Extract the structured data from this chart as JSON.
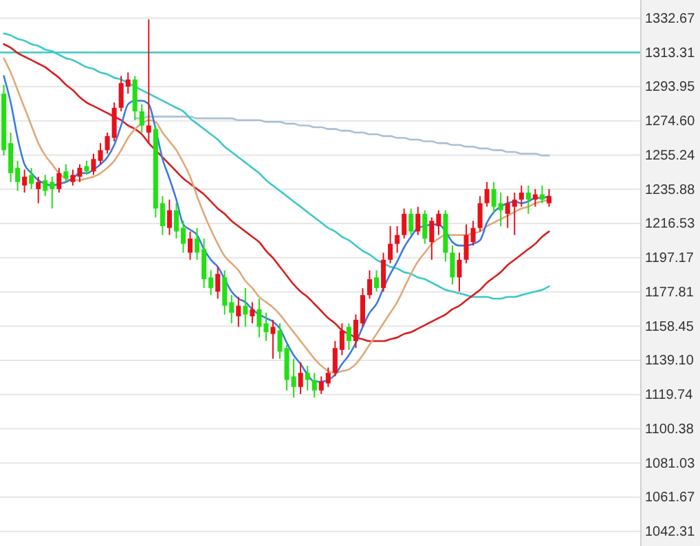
{
  "chart_data": {
    "type": "candlestick",
    "categories": [
      null,
      null,
      null,
      null,
      null,
      null,
      null,
      null,
      null,
      null,
      null,
      null,
      null,
      null,
      null,
      null,
      null,
      null,
      null,
      null,
      null,
      null,
      null,
      null,
      null,
      null,
      null,
      null,
      null,
      null,
      null,
      null,
      null,
      null,
      null,
      null,
      null,
      null,
      null,
      null,
      null,
      null,
      null,
      null,
      null,
      null,
      null,
      null,
      null,
      null,
      null,
      null,
      null,
      null,
      null,
      null,
      null,
      null,
      null,
      null,
      null,
      null,
      null,
      null,
      null,
      null,
      null,
      null,
      null,
      null,
      null,
      null,
      null,
      null,
      null,
      null,
      null,
      null,
      null,
      null
    ],
    "ohlc": [
      [
        1290,
        1295,
        1255,
        1258
      ],
      [
        1262,
        1268,
        1240,
        1245
      ],
      [
        1248,
        1252,
        1235,
        1240
      ],
      [
        1238,
        1247,
        1234,
        1243
      ],
      [
        1244,
        1248,
        1236,
        1239
      ],
      [
        1236,
        1243,
        1228,
        1240
      ],
      [
        1241,
        1244,
        1232,
        1235
      ],
      [
        1240,
        1243,
        1225,
        1236
      ],
      [
        1236,
        1248,
        1234,
        1245
      ],
      [
        1246,
        1250,
        1240,
        1242
      ],
      [
        1240,
        1247,
        1238,
        1244
      ],
      [
        1243,
        1250,
        1240,
        1248
      ],
      [
        1249,
        1252,
        1244,
        1246
      ],
      [
        1246,
        1256,
        1244,
        1253
      ],
      [
        1252,
        1262,
        1250,
        1258
      ],
      [
        1258,
        1268,
        1256,
        1266
      ],
      [
        1265,
        1285,
        1263,
        1282
      ],
      [
        1282,
        1300,
        1280,
        1296
      ],
      [
        1294,
        1302,
        1290,
        1298
      ],
      [
        1298,
        1300,
        1275,
        1280
      ],
      [
        1280,
        1284,
        1268,
        1272
      ],
      [
        1268,
        1332,
        1262,
        1272
      ],
      [
        1270,
        1272,
        1220,
        1225
      ],
      [
        1228,
        1232,
        1210,
        1215
      ],
      [
        1214,
        1230,
        1210,
        1224
      ],
      [
        1224,
        1228,
        1208,
        1212
      ],
      [
        1214,
        1218,
        1200,
        1205
      ],
      [
        1200,
        1212,
        1196,
        1208
      ],
      [
        1208,
        1214,
        1196,
        1200
      ],
      [
        1202,
        1208,
        1180,
        1185
      ],
      [
        1186,
        1190,
        1176,
        1180
      ],
      [
        1178,
        1192,
        1174,
        1188
      ],
      [
        1186,
        1190,
        1165,
        1170
      ],
      [
        1172,
        1176,
        1160,
        1166
      ],
      [
        1164,
        1175,
        1158,
        1170
      ],
      [
        1170,
        1180,
        1158,
        1165
      ],
      [
        1164,
        1172,
        1160,
        1168
      ],
      [
        1168,
        1174,
        1152,
        1158
      ],
      [
        1160,
        1166,
        1150,
        1155
      ],
      [
        1154,
        1162,
        1140,
        1158
      ],
      [
        1156,
        1160,
        1140,
        1144
      ],
      [
        1146,
        1148,
        1122,
        1128
      ],
      [
        1130,
        1140,
        1118,
        1124
      ],
      [
        1124,
        1138,
        1120,
        1132
      ],
      [
        1132,
        1136,
        1122,
        1128
      ],
      [
        1128,
        1132,
        1118,
        1122
      ],
      [
        1122,
        1130,
        1120,
        1127
      ],
      [
        1126,
        1135,
        1124,
        1132
      ],
      [
        1132,
        1150,
        1130,
        1146
      ],
      [
        1145,
        1160,
        1142,
        1156
      ],
      [
        1158,
        1160,
        1145,
        1150
      ],
      [
        1150,
        1165,
        1146,
        1162
      ],
      [
        1160,
        1180,
        1158,
        1176
      ],
      [
        1176,
        1190,
        1174,
        1185
      ],
      [
        1186,
        1190,
        1178,
        1180
      ],
      [
        1180,
        1200,
        1178,
        1196
      ],
      [
        1196,
        1215,
        1194,
        1205
      ],
      [
        1205,
        1215,
        1200,
        1210
      ],
      [
        1210,
        1225,
        1208,
        1222
      ],
      [
        1222,
        1225,
        1210,
        1212
      ],
      [
        1212,
        1226,
        1210,
        1222
      ],
      [
        1222,
        1224,
        1205,
        1208
      ],
      [
        1206,
        1220,
        1196,
        1218
      ],
      [
        1215,
        1224,
        1210,
        1222
      ],
      [
        1222,
        1224,
        1195,
        1200
      ],
      [
        1200,
        1204,
        1182,
        1186
      ],
      [
        1186,
        1200,
        1178,
        1196
      ],
      [
        1196,
        1216,
        1194,
        1210
      ],
      [
        1206,
        1218,
        1204,
        1214
      ],
      [
        1214,
        1232,
        1212,
        1228
      ],
      [
        1228,
        1240,
        1226,
        1236
      ],
      [
        1236,
        1240,
        1222,
        1226
      ],
      [
        1228,
        1234,
        1215,
        1224
      ],
      [
        1222,
        1232,
        1214,
        1228
      ],
      [
        1226,
        1234,
        1210,
        1230
      ],
      [
        1230,
        1238,
        1226,
        1234
      ],
      [
        1234,
        1238,
        1222,
        1230
      ],
      [
        1230,
        1236,
        1226,
        1233
      ],
      [
        1233,
        1238,
        1228,
        1230
      ],
      [
        1228,
        1236,
        1226,
        1232
      ]
    ],
    "colors": [
      "#22e012",
      "#22e012",
      "#22e012",
      "#e8101a",
      "#22e012",
      "#e8101a",
      "#22e012",
      "#22e012",
      "#e8101a",
      "#22e012",
      "#e8101a",
      "#e8101a",
      "#22e012",
      "#e8101a",
      "#e8101a",
      "#e8101a",
      "#e8101a",
      "#e8101a",
      "#e8101a",
      "#22e012",
      "#22e012",
      "#e8101a",
      "#22e012",
      "#22e012",
      "#e8101a",
      "#22e012",
      "#22e012",
      "#e8101a",
      "#22e012",
      "#22e012",
      "#22e012",
      "#e8101a",
      "#22e012",
      "#22e012",
      "#e8101a",
      "#22e012",
      "#e8101a",
      "#22e012",
      "#22e012",
      "#e8101a",
      "#22e012",
      "#22e012",
      "#22e012",
      "#e8101a",
      "#22e012",
      "#22e012",
      "#e8101a",
      "#e8101a",
      "#e8101a",
      "#e8101a",
      "#22e012",
      "#e8101a",
      "#e8101a",
      "#e8101a",
      "#22e012",
      "#e8101a",
      "#e8101a",
      "#e8101a",
      "#e8101a",
      "#22e012",
      "#e8101a",
      "#22e012",
      "#e8101a",
      "#e8101a",
      "#22e012",
      "#22e012",
      "#e8101a",
      "#e8101a",
      "#e8101a",
      "#e8101a",
      "#e8101a",
      "#22e012",
      "#22e012",
      "#e8101a",
      "#e8101a",
      "#e8101a",
      "#22e012",
      "#e8101a",
      "#22e012",
      "#e8101a"
    ],
    "series": [
      {
        "type": "line",
        "color": "#a8bfd6",
        "values": [
          null,
          null,
          null,
          null,
          null,
          null,
          null,
          null,
          null,
          null,
          null,
          null,
          null,
          null,
          null,
          null,
          null,
          null,
          null,
          1276,
          1276,
          1277,
          1277,
          1277,
          1277,
          1277,
          1277,
          1277,
          1276,
          1276,
          1276,
          1276,
          1276,
          1276,
          1275,
          1275,
          1275,
          1275,
          1274,
          1274,
          1274,
          1273,
          1273,
          1272,
          1272,
          1271,
          1271,
          1270,
          1270,
          1269,
          1269,
          1268,
          1268,
          1267,
          1267,
          1266,
          1266,
          1265,
          1265,
          1264,
          1264,
          1263,
          1263,
          1262,
          1262,
          1261,
          1261,
          1260,
          1260,
          1259,
          1259,
          1258,
          1258,
          1257,
          1257,
          1256,
          1256,
          1256,
          1255,
          1255
        ]
      },
      {
        "type": "line",
        "color": "#3cc8c8",
        "values": [
          1324,
          1323,
          1321,
          1320,
          1318,
          1317,
          1315,
          1314,
          1312,
          1310,
          1309,
          1307,
          1305,
          1304,
          1302,
          1301,
          1299,
          1298,
          1296,
          1294,
          1292,
          1290,
          1288,
          1286,
          1284,
          1282,
          1280,
          1276,
          1273,
          1270,
          1267,
          1264,
          1260,
          1257,
          1254,
          1251,
          1248,
          1245,
          1241,
          1238,
          1235,
          1232,
          1229,
          1226,
          1223,
          1220,
          1217,
          1214,
          1212,
          1209,
          1207,
          1204,
          1201,
          1199,
          1196,
          1194,
          1192,
          1191,
          1189,
          1188,
          1186,
          1185,
          1183,
          1181,
          1179,
          1178,
          1177,
          1176,
          1175,
          1175,
          1175,
          1174,
          1174,
          1175,
          1175,
          1176,
          1177,
          1178,
          1179,
          1181
        ]
      },
      {
        "type": "line",
        "color": "#d81e1e",
        "values": [
          1318,
          1316,
          1313,
          1311,
          1309,
          1307,
          1305,
          1302,
          1299,
          1295,
          1292,
          1288,
          1285,
          1283,
          1281,
          1279,
          1277,
          1275,
          1272,
          1270,
          1267,
          1262,
          1258,
          1254,
          1250,
          1246,
          1242,
          1239,
          1236,
          1233,
          1229,
          1225,
          1222,
          1218,
          1215,
          1212,
          1209,
          1206,
          1201,
          1197,
          1192,
          1187,
          1182,
          1178,
          1175,
          1171,
          1167,
          1163,
          1160,
          1156,
          1154,
          1152,
          1151,
          1150,
          1150,
          1150,
          1151,
          1152,
          1154,
          1155,
          1157,
          1159,
          1161,
          1163,
          1165,
          1168,
          1170,
          1173,
          1176,
          1179,
          1183,
          1186,
          1189,
          1193,
          1196,
          1199,
          1202,
          1205,
          1209,
          1212
        ]
      },
      {
        "type": "line",
        "color": "#e0a878",
        "values": [
          1310,
          1302,
          1292,
          1282,
          1272,
          1262,
          1255,
          1250,
          1245,
          1242,
          1241,
          1241,
          1242,
          1243,
          1245,
          1248,
          1252,
          1258,
          1265,
          1270,
          1273,
          1275,
          1274,
          1268,
          1263,
          1258,
          1251,
          1243,
          1232,
          1222,
          1213,
          1205,
          1198,
          1194,
          1190,
          1184,
          1180,
          1175,
          1172,
          1169,
          1165,
          1160,
          1155,
          1150,
          1145,
          1140,
          1136,
          1133,
          1132,
          1133,
          1134,
          1137,
          1142,
          1148,
          1154,
          1160,
          1166,
          1172,
          1180,
          1188,
          1195,
          1200,
          1205,
          1208,
          1210,
          1210,
          1210,
          1210,
          1211,
          1212,
          1215,
          1217,
          1219,
          1221,
          1223,
          1225,
          1226,
          1228,
          1229,
          1230
        ]
      },
      {
        "type": "line",
        "color": "#3a7be0",
        "values": [
          1300,
          1285,
          1265,
          1250,
          1245,
          1241,
          1239,
          1238,
          1239,
          1240,
          1242,
          1245,
          1245,
          1247,
          1250,
          1254,
          1261,
          1272,
          1284,
          1286,
          1286,
          1284,
          1270,
          1253,
          1242,
          1230,
          1216,
          1213,
          1210,
          1202,
          1196,
          1192,
          1185,
          1178,
          1174,
          1172,
          1168,
          1165,
          1163,
          1161,
          1157,
          1149,
          1142,
          1137,
          1131,
          1127,
          1127,
          1128,
          1131,
          1137,
          1142,
          1149,
          1158,
          1166,
          1171,
          1180,
          1188,
          1195,
          1203,
          1209,
          1214,
          1215,
          1216,
          1216,
          1212,
          1206,
          1204,
          1204,
          1205,
          1207,
          1217,
          1223,
          1226,
          1228,
          1229,
          1228,
          1229,
          1231,
          1231,
          1232
        ]
      }
    ],
    "ylim": [
      1034,
      1343
    ],
    "yticks": [
      1332.67,
      1313.31,
      1293.95,
      {
        "value": 1274.6,
        "label": "1274.60"
      },
      1255.24,
      1235.88,
      1216.53,
      1197.17,
      1177.81,
      1158.45,
      {
        "value": 1139.1,
        "label": "1139.10"
      },
      1119.74,
      1100.38,
      1081.03,
      1061.67,
      1042.31
    ],
    "ref_lines": [
      {
        "axis": "y",
        "value": 1313.31,
        "color": "#3cc8c8"
      }
    ],
    "grid": "y"
  }
}
